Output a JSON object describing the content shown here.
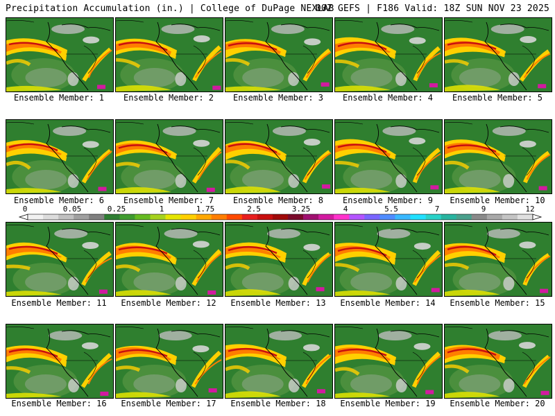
{
  "header": {
    "title_left": "Precipitation Accumulation (in.) | College of DuPage NEXLAB",
    "title_right": "00Z GEFS | F186 Valid: 18Z SUN NOV 23 2025"
  },
  "panels": [
    {
      "caption": "Ensemble Member: 1"
    },
    {
      "caption": "Ensemble Member: 2"
    },
    {
      "caption": "Ensemble Member: 3"
    },
    {
      "caption": "Ensemble Member: 4"
    },
    {
      "caption": "Ensemble Member: 5"
    },
    {
      "caption": "Ensemble Member: 6"
    },
    {
      "caption": "Ensemble Member: 7"
    },
    {
      "caption": "Ensemble Member: 8"
    },
    {
      "caption": "Ensemble Member: 9"
    },
    {
      "caption": "Ensemble Member: 10"
    },
    {
      "caption": "Ensemble Member: 11"
    },
    {
      "caption": "Ensemble Member: 12"
    },
    {
      "caption": "Ensemble Member: 13"
    },
    {
      "caption": "Ensemble Member: 14"
    },
    {
      "caption": "Ensemble Member: 15"
    },
    {
      "caption": "Ensemble Member: 16"
    },
    {
      "caption": "Ensemble Member: 17"
    },
    {
      "caption": "Ensemble Member: 18"
    },
    {
      "caption": "Ensemble Member: 19"
    },
    {
      "caption": "Ensemble Member: 20"
    }
  ],
  "colorbar": {
    "tick_labels": [
      "0",
      "0.05",
      "0.25",
      "1",
      "1.75",
      "2.5",
      "3.25",
      "4",
      "5.5",
      "7",
      "9",
      "12"
    ],
    "colors": [
      "#f2f2f2",
      "#dcdcdc",
      "#c0c0c0",
      "#a0a0a0",
      "#808080",
      "#2e7d32",
      "#3f9b2f",
      "#66bb22",
      "#a6d21e",
      "#e5e500",
      "#ffd000",
      "#ffa800",
      "#ff7e00",
      "#ff4a00",
      "#e81e1e",
      "#c80f0f",
      "#a00a0a",
      "#7a0a2a",
      "#a01070",
      "#d21aa0",
      "#ff33cc",
      "#b455ff",
      "#7a66ff",
      "#4f8cff",
      "#3ab8ff",
      "#22e0ff",
      "#2ad2c8",
      "#28b4a0",
      "#4aa08c",
      "#8a8a8a",
      "#a8a8a8",
      "#c4c4c4",
      "#e0e0e0"
    ]
  }
}
